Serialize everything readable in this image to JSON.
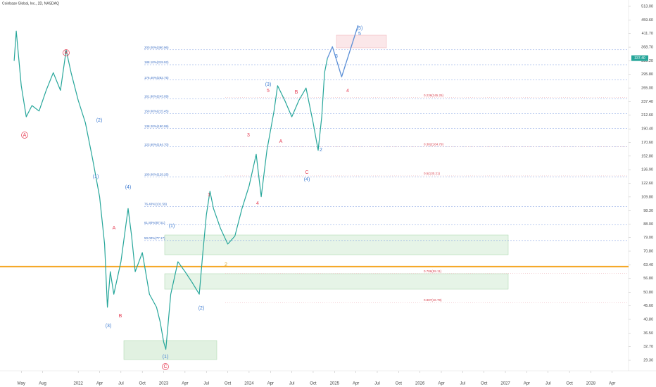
{
  "chart_data": {
    "type": "line",
    "title": "Coinbase Global, Inc., 2D, NASDAQ",
    "log_scale": true,
    "xlim": [
      -1,
      86
    ],
    "ylim": [
      28,
      540
    ],
    "xticks": [
      {
        "value": 1,
        "label": "May"
      },
      {
        "value": 4,
        "label": "Aug"
      },
      {
        "value": 9,
        "label": "2022"
      },
      {
        "value": 12,
        "label": "Apr"
      },
      {
        "value": 15,
        "label": "Jul"
      },
      {
        "value": 18,
        "label": "Oct"
      },
      {
        "value": 21,
        "label": "2023"
      },
      {
        "value": 24,
        "label": "Apr"
      },
      {
        "value": 27,
        "label": "Jul"
      },
      {
        "value": 30,
        "label": "Oct"
      },
      {
        "value": 33,
        "label": "2024"
      },
      {
        "value": 36,
        "label": "Apr"
      },
      {
        "value": 39,
        "label": "Jul"
      },
      {
        "value": 42,
        "label": "Oct"
      },
      {
        "value": 45,
        "label": "2025"
      },
      {
        "value": 48,
        "label": "Apr"
      },
      {
        "value": 51,
        "label": "Jul"
      },
      {
        "value": 54,
        "label": "Oct"
      },
      {
        "value": 57,
        "label": "2026"
      },
      {
        "value": 60,
        "label": "Apr"
      },
      {
        "value": 63,
        "label": "Jul"
      },
      {
        "value": 66,
        "label": "Oct"
      },
      {
        "value": 69,
        "label": "2027"
      },
      {
        "value": 72,
        "label": "Apr"
      },
      {
        "value": 75,
        "label": "Jul"
      },
      {
        "value": 78,
        "label": "Oct"
      },
      {
        "value": 81,
        "label": "2028"
      },
      {
        "value": 84,
        "label": "Apr"
      }
    ],
    "yticks": [
      {
        "value": 29.3,
        "label": "29.30"
      },
      {
        "value": 32.7,
        "label": "32.70"
      },
      {
        "value": 36.5,
        "label": "36.50"
      },
      {
        "value": 40.8,
        "label": "40.80"
      },
      {
        "value": 45.6,
        "label": "45.60"
      },
      {
        "value": 50.8,
        "label": "50.80"
      },
      {
        "value": 56.8,
        "label": "56.80"
      },
      {
        "value": 63.4,
        "label": "63.40"
      },
      {
        "value": 70.8,
        "label": "70.80"
      },
      {
        "value": 79,
        "label": "79.00"
      },
      {
        "value": 88,
        "label": "88.00"
      },
      {
        "value": 98.3,
        "label": "98.30"
      },
      {
        "value": 109.8,
        "label": "109.80"
      },
      {
        "value": 122.6,
        "label": "122.60"
      },
      {
        "value": 136.9,
        "label": "136.90"
      },
      {
        "value": 152.8,
        "label": "152.80"
      },
      {
        "value": 170.6,
        "label": "170.60"
      },
      {
        "value": 190.4,
        "label": "190.40"
      },
      {
        "value": 212.6,
        "label": "212.60"
      },
      {
        "value": 237.4,
        "label": "237.40"
      },
      {
        "value": 265,
        "label": "265.00"
      },
      {
        "value": 295.8,
        "label": "295.80"
      },
      {
        "value": 330.2,
        "label": "330.20"
      },
      {
        "value": 368.7,
        "label": "368.70"
      },
      {
        "value": 411.7,
        "label": "411.70"
      },
      {
        "value": 459.6,
        "label": "459.60"
      },
      {
        "value": 513,
        "label": "513.00"
      }
    ],
    "series": [
      {
        "color": "#26a69a",
        "x": [
          0,
          0.3,
          1,
          1.7,
          2.5,
          3.5,
          4.5,
          5.5,
          6.5,
          7.3,
          8,
          9,
          10,
          11,
          12,
          12.7,
          13.1,
          13.5,
          14,
          15,
          16,
          16.5,
          17,
          18,
          19,
          20,
          20.5,
          21,
          21.3,
          22,
          23,
          24,
          25,
          26,
          26.5,
          27,
          27.5,
          28,
          29,
          30,
          31,
          32,
          33,
          34,
          34.7,
          35.5,
          36.5,
          37,
          38,
          39,
          40,
          41,
          42,
          42.7,
          43.2,
          43.6,
          44
        ],
        "values": [
          330,
          420,
          270,
          210,
          230,
          220,
          260,
          300,
          260,
          360,
          300,
          240,
          200,
          150,
          110,
          75,
          45,
          60,
          50,
          65,
          100,
          80,
          60,
          70,
          50,
          45,
          40,
          34,
          32,
          50,
          65,
          60,
          55,
          50,
          70,
          95,
          115,
          100,
          85,
          75,
          80,
          100,
          120,
          155,
          110,
          160,
          220,
          270,
          240,
          210,
          240,
          265,
          200,
          160,
          210,
          300,
          337
        ]
      },
      {
        "color": "#5b8fd6",
        "x": [
          44,
          44.7,
          46,
          48.3
        ],
        "values": [
          337,
          370,
          290,
          440
        ]
      }
    ],
    "hline": {
      "value": 62.5,
      "color": "#f5a623"
    },
    "last_price": {
      "value": 337.4,
      "label": "337.40"
    },
    "fib_levels": [
      {
        "value": 129.26,
        "label": "100.00%(129.26)"
      },
      {
        "value": 101.59,
        "label": "76.40%(101.59)"
      },
      {
        "value": 87.51,
        "label": "61.80%(87.51)"
      },
      {
        "value": 77.17,
        "label": "50.00%(77.17)"
      },
      {
        "value": 164.7,
        "label": "123.60%(164.70)"
      },
      {
        "value": 190.99,
        "label": "138.20%(190.99)"
      },
      {
        "value": 215.45,
        "label": "150.00%(215.45)"
      },
      {
        "value": 243.09,
        "label": "161.80%(243.09)"
      },
      {
        "value": 282.75,
        "label": "176.40%(282.75)"
      },
      {
        "value": 319.92,
        "label": "188.10%(319.92)"
      },
      {
        "value": 360.96,
        "label": "200.00%(360.96)"
      }
    ],
    "retracements": [
      {
        "value": 245.25,
        "label": "0.236(245.25)"
      },
      {
        "value": 164.79,
        "label": "0.382(164.79)"
      },
      {
        "value": 130.21,
        "label": "0.5(130.21)"
      },
      {
        "value": 59.11,
        "label": "0.786(59.11)"
      },
      {
        "value": 46.78,
        "label": "0.887(46.78)"
      }
    ],
    "annotations": [
      {
        "text": "A",
        "color": "#e53950"
      },
      {
        "text": "B",
        "color": "#e53950"
      },
      {
        "text": "(1)",
        "color": "#3d7bd1"
      },
      {
        "text": "(2)",
        "color": "#3d7bd1"
      },
      {
        "text": "(3)",
        "color": "#3d7bd1"
      },
      {
        "text": "(4)",
        "color": "#3d7bd1"
      },
      {
        "text": "A",
        "color": "#e53950"
      },
      {
        "text": "B",
        "color": "#e53950"
      },
      {
        "text": "(1)",
        "color": "#3d7bd1"
      },
      {
        "text": "(2)",
        "color": "#3d7bd1"
      },
      {
        "text": "(1)",
        "color": "#3d7bd1"
      },
      {
        "text": "C",
        "color": "#e53950"
      },
      {
        "text": "1",
        "color": "#e53950"
      },
      {
        "text": "2",
        "color": "#d4a020"
      },
      {
        "text": "3",
        "color": "#e53950"
      },
      {
        "text": "4",
        "color": "#e53950"
      },
      {
        "text": "(3)",
        "color": "#3d7bd1"
      },
      {
        "text": "5",
        "color": "#e53950"
      },
      {
        "text": "A",
        "color": "#e53950"
      },
      {
        "text": "B",
        "color": "#e53950"
      },
      {
        "text": "C",
        "color": "#e53950"
      },
      {
        "text": "(4)",
        "color": "#3d7bd1"
      },
      {
        "text": "2",
        "color": "#3d7bd1"
      },
      {
        "text": "3",
        "color": "#3d7bd1"
      },
      {
        "text": "4",
        "color": "#e53950"
      },
      {
        "text": "5",
        "color": "#3d7bd1"
      },
      {
        "text": "(5)",
        "color": "#3d7bd1"
      }
    ]
  }
}
